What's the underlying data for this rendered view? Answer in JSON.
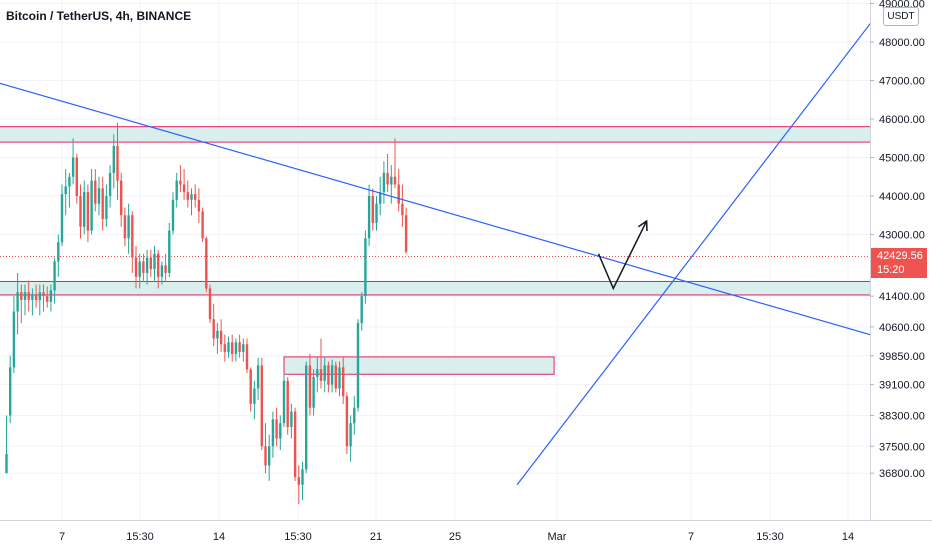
{
  "header": {
    "symbol_title": "Bitcoin / TetherUS, 4h, BINANCE",
    "currency_label": "USDT"
  },
  "last_price": {
    "value": "42429.56",
    "countdown": "15:20",
    "color": "#ef5350"
  },
  "colors": {
    "up": "#26a69a",
    "down": "#ef5350",
    "trendline": "#2962ff",
    "zone_fill": "#d8efee",
    "zone_border": "#e91e63",
    "arrow": "#131722",
    "grid": "#f0f3fa"
  },
  "chart_data": {
    "type": "candlestick",
    "symbol": "BTCUSDT",
    "interval": "4h",
    "exchange": "BINANCE",
    "quote_currency": "USDT",
    "y_axis": {
      "ticks": [
        {
          "label": "49000.00",
          "value": 49000
        },
        {
          "label": "48000.00",
          "value": 48000
        },
        {
          "label": "47000.00",
          "value": 47000
        },
        {
          "label": "46000.00",
          "value": 46000
        },
        {
          "label": "45000.00",
          "value": 45000
        },
        {
          "label": "44000.00",
          "value": 44000
        },
        {
          "label": "43000.00",
          "value": 43000
        },
        {
          "label": "41400.00",
          "value": 41400
        },
        {
          "label": "40600.00",
          "value": 40600
        },
        {
          "label": "39850.00",
          "value": 39850
        },
        {
          "label": "39100.00",
          "value": 39100
        },
        {
          "label": "38300.00",
          "value": 38300
        },
        {
          "label": "37500.00",
          "value": 37500
        },
        {
          "label": "36800.00",
          "value": 36800
        }
      ]
    },
    "x_axis": {
      "ticks": [
        "7",
        "15:30",
        "14",
        "15:30",
        "21",
        "25",
        "Mar",
        "7",
        "15:30",
        "14"
      ]
    },
    "candles": [
      [
        36800,
        38300,
        36800,
        37300
      ],
      [
        38300,
        39850,
        38100,
        39550
      ],
      [
        39550,
        41400,
        39400,
        41000
      ],
      [
        41000,
        42000,
        40400,
        41500
      ],
      [
        41500,
        41700,
        40700,
        41300
      ],
      [
        41300,
        41700,
        40900,
        41500
      ],
      [
        41500,
        41800,
        41000,
        41300
      ],
      [
        41300,
        41600,
        40900,
        41450
      ],
      [
        41450,
        41700,
        41100,
        41300
      ],
      [
        41300,
        41700,
        40900,
        41500
      ],
      [
        41500,
        41700,
        41000,
        41400
      ],
      [
        41400,
        41650,
        41100,
        41250
      ],
      [
        41250,
        41700,
        41000,
        41550
      ],
      [
        41550,
        42400,
        41200,
        42300
      ],
      [
        42300,
        43000,
        41900,
        42800
      ],
      [
        42800,
        44300,
        42700,
        44050
      ],
      [
        44050,
        44700,
        43500,
        44250
      ],
      [
        44250,
        44600,
        43700,
        44500
      ],
      [
        44500,
        45500,
        44300,
        45000
      ],
      [
        45000,
        45100,
        43800,
        44000
      ],
      [
        44000,
        44300,
        42900,
        43200
      ],
      [
        43200,
        44400,
        43000,
        44100
      ],
      [
        44100,
        44300,
        42800,
        43100
      ],
      [
        43100,
        44700,
        43000,
        44400
      ],
      [
        44400,
        44700,
        43600,
        43800
      ],
      [
        43800,
        44500,
        43500,
        44200
      ],
      [
        44200,
        44500,
        43100,
        43400
      ],
      [
        43400,
        44300,
        43200,
        44000
      ],
      [
        44000,
        44800,
        43700,
        44600
      ],
      [
        44600,
        45600,
        44200,
        45300
      ],
      [
        45300,
        45900,
        43900,
        44400
      ],
      [
        44400,
        44600,
        43200,
        43500
      ],
      [
        43500,
        43700,
        42700,
        42900
      ],
      [
        42900,
        43800,
        42500,
        43500
      ],
      [
        43500,
        43600,
        42000,
        42400
      ],
      [
        42400,
        42700,
        41600,
        41900
      ],
      [
        41900,
        42500,
        41600,
        42300
      ],
      [
        42300,
        42500,
        41800,
        42000
      ],
      [
        42000,
        42600,
        41700,
        42400
      ],
      [
        42400,
        42600,
        41900,
        42100
      ],
      [
        42100,
        42700,
        41800,
        42500
      ],
      [
        42500,
        42600,
        41600,
        41900
      ],
      [
        41900,
        42300,
        41700,
        42200
      ],
      [
        42200,
        42500,
        41800,
        42000
      ],
      [
        42000,
        43300,
        41900,
        43100
      ],
      [
        43100,
        44100,
        43000,
        43900
      ],
      [
        43900,
        44600,
        43700,
        44400
      ],
      [
        44400,
        44800,
        44100,
        44300
      ],
      [
        44300,
        44700,
        43900,
        44100
      ],
      [
        44100,
        44400,
        43700,
        43900
      ],
      [
        43900,
        44200,
        43500,
        44050
      ],
      [
        44050,
        44300,
        43700,
        43900
      ],
      [
        43900,
        44200,
        43300,
        43600
      ],
      [
        43600,
        43700,
        42800,
        42900
      ],
      [
        42900,
        42950,
        41500,
        41600
      ],
      [
        41600,
        41700,
        40700,
        40800
      ],
      [
        40800,
        41200,
        40100,
        40300
      ],
      [
        40300,
        40700,
        39900,
        40500
      ],
      [
        40500,
        40800,
        39950,
        40150
      ],
      [
        40150,
        40400,
        39700,
        39950
      ],
      [
        39950,
        40350,
        39800,
        40200
      ],
      [
        40200,
        40400,
        39700,
        39900
      ],
      [
        39900,
        40300,
        39700,
        40200
      ],
      [
        40200,
        40400,
        39800,
        39950
      ],
      [
        39950,
        40300,
        39700,
        40150
      ],
      [
        40150,
        40300,
        39400,
        39500
      ],
      [
        39500,
        39550,
        38400,
        38600
      ],
      [
        38600,
        39200,
        38200,
        39000
      ],
      [
        39000,
        39800,
        38700,
        39600
      ],
      [
        39600,
        39800,
        37400,
        37500
      ],
      [
        37500,
        38100,
        36800,
        37000
      ],
      [
        37000,
        37800,
        36600,
        37500
      ],
      [
        37500,
        38400,
        37200,
        38200
      ],
      [
        38200,
        38500,
        37500,
        37700
      ],
      [
        37700,
        38300,
        37400,
        38100
      ],
      [
        38100,
        39400,
        38000,
        39200
      ],
      [
        39200,
        39300,
        37800,
        38000
      ],
      [
        38000,
        38600,
        37700,
        38400
      ],
      [
        38400,
        38500,
        36600,
        36700
      ],
      [
        36700,
        37000,
        36000,
        36500
      ],
      [
        36500,
        37100,
        36100,
        36900
      ],
      [
        36900,
        39700,
        36800,
        39600
      ],
      [
        39600,
        39900,
        38300,
        38500
      ],
      [
        38500,
        39500,
        38300,
        39300
      ],
      [
        39300,
        39800,
        38900,
        39500
      ],
      [
        39500,
        40300,
        39000,
        39200
      ],
      [
        39200,
        39800,
        38900,
        39600
      ],
      [
        39600,
        39700,
        38900,
        39100
      ],
      [
        39100,
        39750,
        38900,
        39600
      ],
      [
        39600,
        39700,
        38900,
        39000
      ],
      [
        39000,
        39700,
        38800,
        39550
      ],
      [
        39550,
        39800,
        38600,
        38800
      ],
      [
        38800,
        38900,
        37300,
        37500
      ],
      [
        37500,
        38300,
        37100,
        38100
      ],
      [
        38100,
        38800,
        37800,
        38500
      ],
      [
        38500,
        40800,
        38400,
        40700
      ],
      [
        40700,
        41500,
        40500,
        41400
      ],
      [
        41400,
        43100,
        41200,
        42900
      ],
      [
        42900,
        44300,
        42700,
        44000
      ],
      [
        44000,
        44200,
        43100,
        43300
      ],
      [
        43300,
        44000,
        43100,
        43800
      ],
      [
        43800,
        44500,
        43500,
        44100
      ],
      [
        44100,
        44900,
        43800,
        44600
      ],
      [
        44600,
        45100,
        44100,
        44300
      ],
      [
        44300,
        44800,
        43800,
        44500
      ],
      [
        44500,
        45500,
        44200,
        44300
      ],
      [
        44300,
        44700,
        43600,
        43800
      ],
      [
        43800,
        44300,
        43200,
        43500
      ],
      [
        43500,
        43700,
        42500,
        42550
      ]
    ],
    "trendlines": [
      {
        "from": {
          "bar": -8,
          "price": 47100
        },
        "to": {
          "bar": 255,
          "price": 39800
        }
      },
      {
        "from": {
          "bar": 138,
          "price": 36500
        },
        "to": {
          "bar": 240,
          "price": 49300
        }
      }
    ],
    "zones": [
      {
        "from_bar": -8,
        "to_bar": 255,
        "top": 45800,
        "bottom": 45400
      },
      {
        "from_bar": -8,
        "to_bar": 255,
        "top": 41780,
        "bottom": 41430
      },
      {
        "from_bar": 75,
        "to_bar": 148,
        "top": 39820,
        "bottom": 39370
      }
    ],
    "projection_arrow": [
      {
        "bar": 160,
        "price": 42500
      },
      {
        "bar": 164,
        "price": 41600
      },
      {
        "bar": 173,
        "price": 43350
      }
    ],
    "last_price_line": 42429.56,
    "grid": true
  }
}
